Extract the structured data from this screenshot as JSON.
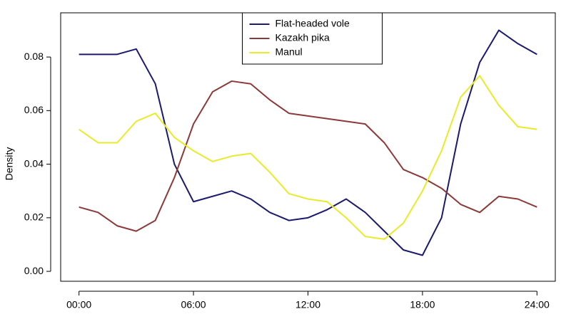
{
  "chart_data": {
    "type": "line",
    "ylabel": "Density",
    "x": [
      0,
      1,
      2,
      3,
      4,
      5,
      6,
      7,
      8,
      9,
      10,
      11,
      12,
      13,
      14,
      15,
      16,
      17,
      18,
      19,
      20,
      21,
      22,
      23,
      24
    ],
    "series": [
      {
        "name": "Flat-headed vole",
        "color": "#1a1a6e",
        "values": [
          0.081,
          0.081,
          0.081,
          0.083,
          0.07,
          0.04,
          0.026,
          0.028,
          0.03,
          0.027,
          0.022,
          0.019,
          0.02,
          0.023,
          0.027,
          0.022,
          0.015,
          0.008,
          0.006,
          0.02,
          0.055,
          0.078,
          0.09,
          0.085,
          0.081
        ]
      },
      {
        "name": "Kazakh pika",
        "color": "#8b3a3a",
        "values": [
          0.024,
          0.022,
          0.017,
          0.015,
          0.019,
          0.035,
          0.055,
          0.067,
          0.071,
          0.07,
          0.064,
          0.059,
          0.058,
          0.057,
          0.056,
          0.055,
          0.048,
          0.038,
          0.035,
          0.031,
          0.025,
          0.022,
          0.028,
          0.027,
          0.024
        ]
      },
      {
        "name": "Manul",
        "color": "#e8ea2a",
        "values": [
          0.053,
          0.048,
          0.048,
          0.056,
          0.059,
          0.05,
          0.045,
          0.041,
          0.043,
          0.044,
          0.037,
          0.029,
          0.027,
          0.026,
          0.02,
          0.013,
          0.012,
          0.018,
          0.03,
          0.045,
          0.065,
          0.073,
          0.062,
          0.054,
          0.053
        ]
      }
    ],
    "xlim": [
      -0.96,
      24.96
    ],
    "xticks": [
      {
        "value": 0,
        "label": "00:00"
      },
      {
        "value": 6,
        "label": "06:00"
      },
      {
        "value": 12,
        "label": "12:00"
      },
      {
        "value": 18,
        "label": "18:00"
      },
      {
        "value": 24,
        "label": "24:00"
      }
    ],
    "ylim": [
      -0.0037,
      0.0965
    ],
    "yticks": [
      {
        "value": 0,
        "label": "0.00"
      },
      {
        "value": 0.02,
        "label": "0.02"
      },
      {
        "value": 0.04,
        "label": "0.04"
      },
      {
        "value": 0.06,
        "label": "0.06"
      },
      {
        "value": 0.08,
        "label": "0.08"
      }
    ],
    "legend": "top"
  }
}
